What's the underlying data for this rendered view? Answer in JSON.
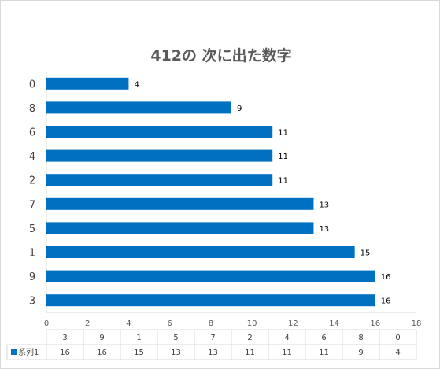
{
  "chart_data": {
    "type": "bar",
    "orientation": "horizontal",
    "title": "412の 次に出た数字",
    "categories": [
      "0",
      "8",
      "6",
      "4",
      "2",
      "7",
      "5",
      "1",
      "9",
      "3"
    ],
    "series": [
      {
        "name": "系列1",
        "values": [
          4,
          9,
          11,
          11,
          11,
          13,
          13,
          15,
          16,
          16
        ]
      }
    ],
    "xlim": [
      0,
      18
    ],
    "xticks": [
      0,
      2,
      4,
      6,
      8,
      10,
      12,
      14,
      16,
      18
    ],
    "data_labels": true,
    "grid": false,
    "legend": "in data table",
    "data_table": {
      "header": [
        "3",
        "9",
        "1",
        "5",
        "7",
        "2",
        "4",
        "6",
        "8",
        "0"
      ],
      "series_label": "系列1",
      "values": [
        "16",
        "16",
        "15",
        "13",
        "13",
        "11",
        "11",
        "11",
        "9",
        "4"
      ]
    },
    "colors": {
      "bar": "#0070C0",
      "axis": "#d9d9d9",
      "text": "#404040"
    }
  }
}
